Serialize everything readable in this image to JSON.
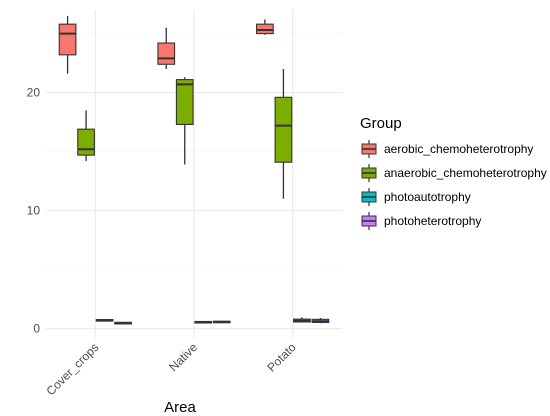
{
  "chart_data": {
    "type": "boxplot",
    "title": "",
    "xlabel": "Area",
    "ylabel": "",
    "categories": [
      "Cover_crops",
      "Native",
      "Potato"
    ],
    "ylim": [
      -0.8,
      27
    ],
    "yticks": [
      0,
      10,
      20
    ],
    "grid": true,
    "legend": {
      "title": "Group",
      "position": "right"
    },
    "series": [
      {
        "name": "aerobic_chemoheterotrophy",
        "color": "#F8766D",
        "boxes": [
          {
            "min": 21.6,
            "q1": 23.2,
            "median": 25.0,
            "q3": 25.8,
            "max": 26.5
          },
          {
            "min": 22.0,
            "q1": 22.4,
            "median": 22.9,
            "q3": 24.2,
            "max": 25.5
          },
          {
            "min": 24.9,
            "q1": 25.0,
            "median": 25.3,
            "q3": 25.8,
            "max": 26.2
          }
        ]
      },
      {
        "name": "anaerobic_chemoheterotrophy",
        "color": "#7CAE00",
        "boxes": [
          {
            "min": 14.2,
            "q1": 14.7,
            "median": 15.2,
            "q3": 16.9,
            "max": 18.5
          },
          {
            "min": 13.9,
            "q1": 17.3,
            "median": 20.7,
            "q3": 21.1,
            "max": 21.3
          },
          {
            "min": 11.0,
            "q1": 14.1,
            "median": 17.2,
            "q3": 19.6,
            "max": 22.0
          }
        ]
      },
      {
        "name": "photoautotrophy",
        "color": "#00BFC4",
        "boxes": [
          {
            "min": 0.65,
            "q1": 0.68,
            "median": 0.72,
            "q3": 0.76,
            "max": 0.8
          },
          {
            "min": 0.5,
            "q1": 0.53,
            "median": 0.56,
            "q3": 0.6,
            "max": 0.64
          },
          {
            "min": 0.5,
            "q1": 0.56,
            "median": 0.66,
            "q3": 0.8,
            "max": 0.95
          }
        ]
      },
      {
        "name": "photoheterotrophy",
        "color": "#C77CFF",
        "boxes": [
          {
            "min": 0.42,
            "q1": 0.45,
            "median": 0.48,
            "q3": 0.52,
            "max": 0.55
          },
          {
            "min": 0.5,
            "q1": 0.53,
            "median": 0.57,
            "q3": 0.62,
            "max": 0.66
          },
          {
            "min": 0.45,
            "q1": 0.52,
            "median": 0.62,
            "q3": 0.78,
            "max": 0.9
          }
        ]
      }
    ]
  }
}
